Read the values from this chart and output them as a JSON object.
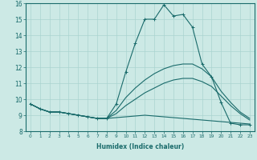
{
  "xlabel": "Humidex (Indice chaleur)",
  "ylabel": "",
  "xlim": [
    -0.5,
    23.5
  ],
  "ylim": [
    8,
    16
  ],
  "yticks": [
    8,
    9,
    10,
    11,
    12,
    13,
    14,
    15,
    16
  ],
  "xticks": [
    0,
    1,
    2,
    3,
    4,
    5,
    6,
    7,
    8,
    9,
    10,
    11,
    12,
    13,
    14,
    15,
    16,
    17,
    18,
    19,
    20,
    21,
    22,
    23
  ],
  "bg_color": "#cce9e5",
  "line_color": "#1a6b6b",
  "grid_color": "#aad4d0",
  "lines": [
    {
      "x": [
        0,
        1,
        2,
        3,
        4,
        5,
        6,
        7,
        8,
        9,
        10,
        11,
        12,
        13,
        14,
        15,
        16,
        17,
        18,
        19,
        20,
        21,
        22,
        23
      ],
      "y": [
        9.7,
        9.4,
        9.2,
        9.2,
        9.1,
        9.0,
        8.9,
        8.8,
        8.8,
        9.7,
        11.7,
        13.5,
        15.0,
        15.0,
        15.9,
        15.2,
        15.3,
        14.5,
        12.2,
        11.4,
        9.8,
        8.5,
        8.4,
        8.4
      ],
      "marker": "+"
    },
    {
      "x": [
        0,
        1,
        2,
        3,
        4,
        5,
        6,
        7,
        8,
        9,
        10,
        11,
        12,
        13,
        14,
        15,
        16,
        17,
        18,
        19,
        20,
        21,
        22,
        23
      ],
      "y": [
        9.7,
        9.4,
        9.2,
        9.2,
        9.1,
        9.0,
        8.9,
        8.8,
        8.8,
        9.3,
        10.1,
        10.7,
        11.2,
        11.6,
        11.9,
        12.1,
        12.2,
        12.2,
        11.9,
        11.4,
        10.5,
        9.8,
        9.2,
        8.8
      ],
      "marker": null
    },
    {
      "x": [
        0,
        1,
        2,
        3,
        4,
        5,
        6,
        7,
        8,
        9,
        10,
        11,
        12,
        13,
        14,
        15,
        16,
        17,
        18,
        19,
        20,
        21,
        22,
        23
      ],
      "y": [
        9.7,
        9.4,
        9.2,
        9.2,
        9.1,
        9.0,
        8.9,
        8.8,
        8.8,
        9.1,
        9.6,
        10.0,
        10.4,
        10.7,
        11.0,
        11.2,
        11.3,
        11.3,
        11.1,
        10.8,
        10.2,
        9.6,
        9.1,
        8.7
      ],
      "marker": null
    },
    {
      "x": [
        0,
        1,
        2,
        3,
        4,
        5,
        6,
        7,
        8,
        9,
        10,
        11,
        12,
        13,
        14,
        15,
        16,
        17,
        18,
        19,
        20,
        21,
        22,
        23
      ],
      "y": [
        9.7,
        9.4,
        9.2,
        9.2,
        9.1,
        9.0,
        8.9,
        8.8,
        8.8,
        8.85,
        8.9,
        8.95,
        9.0,
        8.95,
        8.9,
        8.85,
        8.8,
        8.75,
        8.7,
        8.65,
        8.6,
        8.55,
        8.5,
        8.45
      ],
      "marker": null
    }
  ]
}
